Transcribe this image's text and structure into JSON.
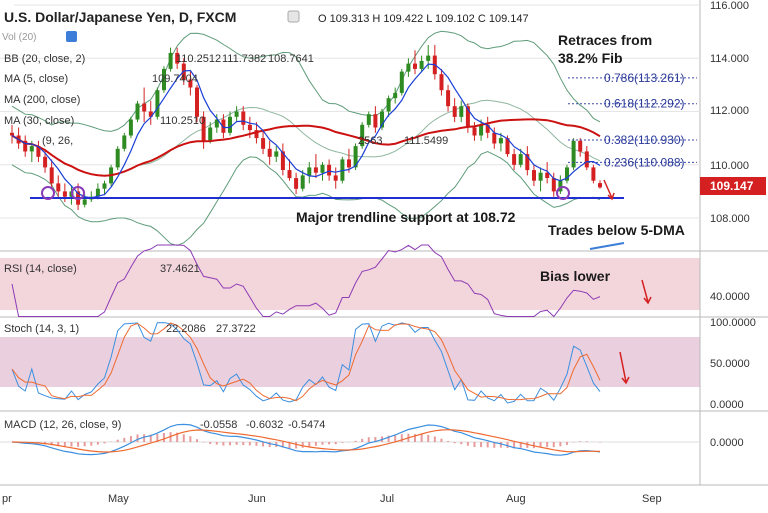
{
  "header": {
    "instrument": "U.S. Dollar/Japanese Yen, D, FXCM",
    "ohlc": "O 109.313  H 109.422  L 109.102  C 109.147"
  },
  "legend": {
    "vol": "Vol (20)",
    "bb": "BB (20, close, 2)",
    "bb_values": [
      "110.2512",
      "111.7382",
      "108.7641"
    ],
    "ma5": "MA (5, close)",
    "ma5_value": "109.7404",
    "ma200": "MA (200, close)",
    "ma30": "MA (30, close)",
    "ma30_value": "110.2510",
    "ichimoku_partial": "(9, 26,",
    "extra_values": [
      "2563",
      "111.5499"
    ]
  },
  "annotations": {
    "retrace_line1": "Retraces from",
    "retrace_line2": "38.2% Fib",
    "trendline": "Major trendline support at 108.72",
    "trades_below": "Trades below 5-DMA",
    "bias": "Bias lower"
  },
  "fib_levels": [
    {
      "label": "0.786(113.261)",
      "value": 113.261
    },
    {
      "label": "0.618(112.292)",
      "value": 112.292
    },
    {
      "label": "0.382(110.930)",
      "value": 110.93
    },
    {
      "label": "0.236(110.088)",
      "value": 110.088
    }
  ],
  "price_axis": {
    "ticks": [
      "116.000",
      "114.000",
      "112.000",
      "110.000",
      "108.000"
    ],
    "last_price": "109.147"
  },
  "rsi": {
    "label": "RSI (14, close)",
    "value": "37.4621",
    "ticks": [
      "40.0000"
    ]
  },
  "stoch": {
    "label": "Stoch (14, 3, 1)",
    "k": "22.2086",
    "d": "27.3722",
    "ticks": [
      "100.0000",
      "50.0000",
      "0.0000"
    ]
  },
  "macd": {
    "label": "MACD (12, 26, close, 9)",
    "hist": "-0.0558",
    "macd": "-0.6032",
    "signal": "-0.5474",
    "ticks": [
      "0.0000"
    ]
  },
  "time_axis": [
    "pr",
    "May",
    "Jun",
    "Jul",
    "Aug",
    "Sep"
  ],
  "colors": {
    "up": "#2e8b22",
    "down": "#d42020",
    "ma30": "#cc1111",
    "ma5": "#1a3fd6",
    "bb": "#5f9c7a",
    "support": "#1f2fd0",
    "fib": "#3a4aa8",
    "rsi": "#8e3bb5",
    "stoch_k": "#3b8fe0",
    "stoch_d": "#ef6a30",
    "band": "#f3d6dc"
  },
  "chart_data": {
    "type": "candlestick",
    "title": "U.S. Dollar/Japanese Yen, D, FXCM",
    "x_labels": [
      "Apr",
      "May",
      "Jun",
      "Jul",
      "Aug",
      "Sep"
    ],
    "ylim": [
      106.8,
      116.2
    ],
    "candles": [
      [
        111.2,
        111.5,
        110.8,
        111.1
      ],
      [
        111.1,
        111.4,
        110.6,
        110.8
      ],
      [
        110.9,
        111.1,
        110.3,
        110.5
      ],
      [
        110.5,
        110.9,
        110.1,
        110.7
      ],
      [
        110.7,
        110.9,
        110.1,
        110.3
      ],
      [
        110.3,
        110.6,
        109.7,
        109.9
      ],
      [
        109.9,
        110.2,
        109.1,
        109.3
      ],
      [
        109.3,
        109.6,
        108.8,
        109.0
      ],
      [
        109.0,
        109.3,
        108.6,
        108.8
      ],
      [
        108.8,
        109.2,
        108.5,
        109.0
      ],
      [
        109.0,
        109.3,
        108.3,
        108.5
      ],
      [
        108.5,
        108.9,
        108.4,
        108.7
      ],
      [
        108.7,
        109.0,
        108.6,
        108.8
      ],
      [
        108.8,
        109.3,
        108.7,
        109.1
      ],
      [
        109.1,
        109.4,
        108.9,
        109.3
      ],
      [
        109.3,
        110.0,
        109.2,
        109.9
      ],
      [
        109.9,
        110.7,
        109.8,
        110.6
      ],
      [
        110.6,
        111.2,
        110.5,
        111.1
      ],
      [
        111.1,
        111.8,
        111.0,
        111.7
      ],
      [
        111.7,
        112.4,
        111.6,
        112.3
      ],
      [
        112.3,
        112.9,
        111.6,
        112.0
      ],
      [
        112.0,
        112.4,
        111.5,
        111.8
      ],
      [
        111.8,
        112.9,
        111.7,
        112.8
      ],
      [
        112.8,
        113.7,
        112.7,
        113.6
      ],
      [
        113.6,
        114.4,
        113.5,
        114.2
      ],
      [
        114.2,
        114.4,
        113.6,
        113.8
      ],
      [
        113.8,
        114.0,
        113.0,
        113.2
      ],
      [
        113.2,
        113.5,
        112.6,
        112.9
      ],
      [
        112.9,
        113.0,
        111.6,
        111.8
      ],
      [
        111.8,
        112.0,
        110.6,
        110.9
      ],
      [
        110.9,
        111.6,
        110.8,
        111.4
      ],
      [
        111.4,
        111.9,
        111.2,
        111.7
      ],
      [
        111.7,
        111.9,
        111.0,
        111.2
      ],
      [
        111.2,
        112.0,
        111.1,
        111.8
      ],
      [
        111.8,
        112.2,
        111.6,
        112.0
      ],
      [
        112.0,
        112.2,
        111.3,
        111.5
      ],
      [
        111.5,
        111.8,
        111.0,
        111.3
      ],
      [
        111.3,
        111.6,
        110.8,
        111.0
      ],
      [
        111.0,
        111.3,
        110.4,
        110.6
      ],
      [
        110.6,
        110.9,
        110.0,
        110.3
      ],
      [
        110.3,
        110.7,
        110.1,
        110.5
      ],
      [
        110.5,
        110.8,
        109.6,
        109.8
      ],
      [
        109.8,
        110.2,
        109.4,
        109.5
      ],
      [
        109.5,
        109.7,
        108.9,
        109.1
      ],
      [
        109.1,
        109.8,
        109.0,
        109.6
      ],
      [
        109.6,
        110.1,
        109.3,
        109.9
      ],
      [
        109.9,
        110.4,
        109.5,
        109.7
      ],
      [
        109.7,
        110.1,
        109.4,
        110.0
      ],
      [
        110.0,
        110.2,
        109.4,
        109.6
      ],
      [
        109.6,
        109.9,
        109.1,
        109.4
      ],
      [
        109.4,
        110.3,
        109.3,
        110.2
      ],
      [
        110.2,
        110.6,
        109.7,
        109.9
      ],
      [
        109.9,
        110.8,
        109.8,
        110.7
      ],
      [
        110.7,
        111.6,
        110.6,
        111.5
      ],
      [
        111.5,
        112.0,
        111.4,
        111.9
      ],
      [
        111.9,
        112.2,
        111.2,
        111.4
      ],
      [
        111.4,
        112.1,
        111.3,
        112.0
      ],
      [
        112.0,
        112.6,
        111.8,
        112.5
      ],
      [
        112.5,
        112.9,
        112.3,
        112.7
      ],
      [
        112.7,
        113.6,
        112.6,
        113.5
      ],
      [
        113.5,
        114.0,
        113.3,
        113.8
      ],
      [
        113.8,
        114.3,
        113.4,
        113.6
      ],
      [
        113.6,
        114.1,
        113.5,
        113.9
      ],
      [
        113.9,
        114.5,
        113.6,
        114.1
      ],
      [
        114.1,
        114.5,
        113.2,
        113.4
      ],
      [
        113.4,
        113.6,
        112.6,
        112.8
      ],
      [
        112.8,
        113.0,
        112.0,
        112.2
      ],
      [
        112.2,
        112.5,
        111.6,
        111.8
      ],
      [
        111.8,
        112.4,
        111.6,
        112.2
      ],
      [
        112.2,
        112.3,
        111.2,
        111.4
      ],
      [
        111.4,
        111.6,
        110.9,
        111.1
      ],
      [
        111.1,
        111.7,
        110.9,
        111.5
      ],
      [
        111.5,
        111.8,
        111.0,
        111.2
      ],
      [
        111.2,
        111.4,
        110.6,
        110.8
      ],
      [
        110.8,
        111.2,
        110.5,
        111.0
      ],
      [
        111.0,
        111.1,
        110.3,
        110.4
      ],
      [
        110.4,
        110.6,
        109.8,
        110.0
      ],
      [
        110.0,
        110.6,
        109.9,
        110.4
      ],
      [
        110.4,
        110.7,
        109.6,
        109.8
      ],
      [
        109.8,
        110.0,
        109.2,
        109.4
      ],
      [
        109.4,
        109.9,
        109.0,
        109.7
      ],
      [
        109.7,
        110.1,
        109.3,
        109.5
      ],
      [
        109.5,
        109.7,
        108.8,
        109.0
      ],
      [
        109.0,
        109.6,
        108.9,
        109.4
      ],
      [
        109.4,
        110.0,
        109.3,
        109.9
      ],
      [
        109.9,
        111.0,
        109.8,
        110.9
      ],
      [
        110.9,
        111.0,
        110.3,
        110.5
      ],
      [
        110.5,
        110.7,
        109.8,
        109.9
      ],
      [
        109.9,
        110.0,
        109.3,
        109.4
      ],
      [
        109.31,
        109.42,
        109.1,
        109.15
      ]
    ],
    "support_level": 108.72
  }
}
